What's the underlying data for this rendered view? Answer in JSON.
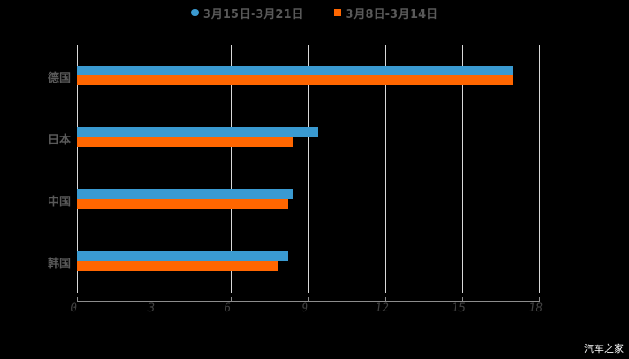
{
  "chart_data": {
    "type": "bar",
    "orientation": "horizontal",
    "title": "",
    "xlabel": "",
    "ylabel": "",
    "categories": [
      "德国",
      "日本",
      "中国",
      "韩国"
    ],
    "series": [
      {
        "name": "3月15日-3月21日",
        "color": "#3a9ad1",
        "values": [
          17.0,
          9.4,
          8.4,
          8.2
        ]
      },
      {
        "name": "3月8日-3月14日",
        "color": "#ff6600",
        "values": [
          17.0,
          8.4,
          8.2,
          7.8
        ]
      }
    ],
    "xlim": [
      0,
      18
    ],
    "x_ticks": [
      "0",
      "3",
      "6",
      "9",
      "12",
      "15",
      "18"
    ],
    "grid": true,
    "legend_position": "top"
  },
  "legend": {
    "items": [
      {
        "label": "3月15日-3月21日",
        "color": "#3a9ad1",
        "marker": "circle"
      },
      {
        "label": "3月8日-3月14日",
        "color": "#ff6600",
        "marker": "square"
      }
    ]
  },
  "watermark": "汽车之家"
}
